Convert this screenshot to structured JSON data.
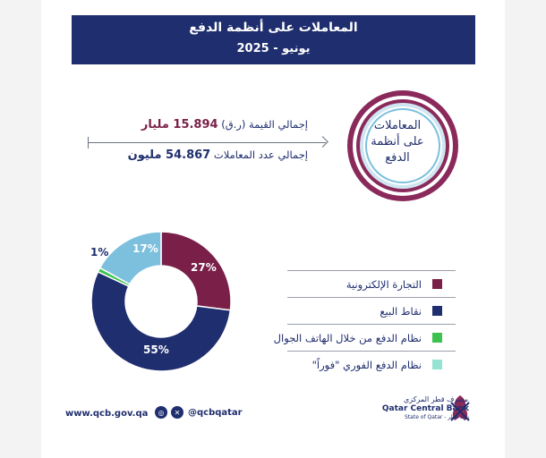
{
  "header": {
    "title": "المعاملات على أنظمة الدفع",
    "period": "يونيو - 2025"
  },
  "summary": {
    "value_label": "إجمالي القيمة (ر.ق)",
    "value_amount": "15.894 مليار",
    "count_label": "إجمالي عدد المعاملات",
    "count_amount": "54.867 مليون"
  },
  "circle": {
    "line1": "المعاملات",
    "line2": "على أنظمة",
    "line3": "الدفع"
  },
  "colors": {
    "brand_navy": "#1f2e6e",
    "maroon": "#7a2048",
    "green": "#3cc24f",
    "light_blue": "#7cc0de",
    "ring_outer": "#8a2a5b"
  },
  "chart_data": {
    "type": "pie",
    "donut": true,
    "slices": [
      {
        "label": "التجارة الإلكترونية",
        "value": 27,
        "display": "27%",
        "color": "#7a2048"
      },
      {
        "label": "نقاط البيع",
        "value": 55,
        "display": "55%",
        "color": "#1f2e6e"
      },
      {
        "label": "نظام الدفع من خلال الهاتف الجوال",
        "value": 1,
        "display": "1%",
        "color": "#3cc24f"
      },
      {
        "label": "نظام الدفع الفوري \"فوراً\"",
        "value": 17,
        "display": "17%",
        "color": "#7cc0de"
      }
    ],
    "legend_placement": "right",
    "legend_items": [
      {
        "label": "التجارة الإلكترونية",
        "color": "#7a2048"
      },
      {
        "label": "نقاط البيع",
        "color": "#1f2e6e"
      },
      {
        "label": "نظام الدفع من خلال الهاتف الجوال",
        "color": "#3cc24f"
      },
      {
        "label": "نظام الدفع الفوري \"فوراً\"",
        "color": "#94e3d3"
      }
    ]
  },
  "footer": {
    "website": "www.qcb.gov.qa",
    "handle": "@qcbqatar",
    "icons": [
      "instagram-icon",
      "x-icon"
    ],
    "logo_arabic": "مصرف قطر المركزي",
    "logo_english": "Qatar Central Bank",
    "logo_sub": "State of Qatar - دولة قطر"
  }
}
